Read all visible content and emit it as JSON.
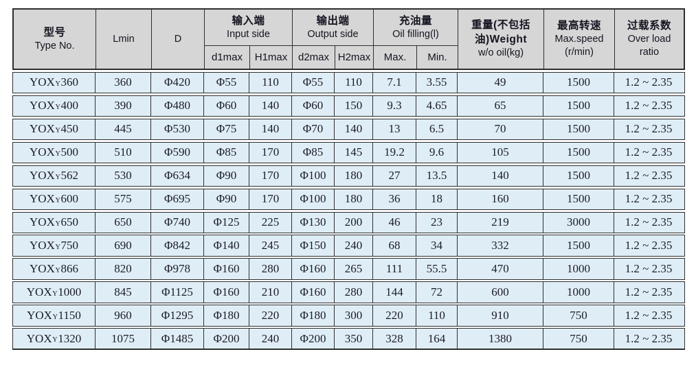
{
  "colors": {
    "header_bg": "#d6d6d6",
    "row_bg": "#dfeef6",
    "grid_line": "#2e2e2e"
  },
  "table": {
    "header": {
      "type_no": [
        "型号",
        "Type No."
      ],
      "lmin": "Lmin",
      "d": "D",
      "input_side": [
        "输入端",
        "Input side"
      ],
      "output_side": [
        "输出端",
        "Output side"
      ],
      "oil_filling": [
        "充油量",
        "Oil filling(l)"
      ],
      "weight": [
        "重量(不包括",
        "油)Weight",
        "w/o oil(kg)"
      ],
      "max_speed": [
        "最高转速",
        "Max.speed",
        "(r/min)"
      ],
      "overload": [
        "过载系数",
        "Over load",
        "ratio"
      ],
      "sub_labels": [
        "d1max",
        "H1max",
        "d2max",
        "H2max",
        "Max.",
        "Min."
      ]
    },
    "rows": [
      {
        "type": [
          "YOX",
          "Y",
          "360"
        ],
        "lmin": "360",
        "d": "Φ420",
        "d1max": "Φ55",
        "h1max": "110",
        "d2max": "Φ55",
        "h2max": "110",
        "oil_max": "7.1",
        "oil_min": "3.55",
        "weight": "49",
        "speed": "1500",
        "overload": "1.2 ~ 2.35"
      },
      {
        "type": [
          "YOX",
          "Y",
          "400"
        ],
        "lmin": "390",
        "d": "Φ480",
        "d1max": "Φ60",
        "h1max": "140",
        "d2max": "Φ60",
        "h2max": "150",
        "oil_max": "9.3",
        "oil_min": "4.65",
        "weight": "65",
        "speed": "1500",
        "overload": "1.2 ~ 2.35"
      },
      {
        "type": [
          "YOX",
          "Y",
          "450"
        ],
        "lmin": "445",
        "d": "Φ530",
        "d1max": "Φ75",
        "h1max": "140",
        "d2max": "Φ70",
        "h2max": "140",
        "oil_max": "13",
        "oil_min": "6.5",
        "weight": "70",
        "speed": "1500",
        "overload": "1.2 ~ 2.35"
      },
      {
        "type": [
          "YOX",
          "Y",
          "500"
        ],
        "lmin": "510",
        "d": "Φ590",
        "d1max": "Φ85",
        "h1max": "170",
        "d2max": "Φ85",
        "h2max": "145",
        "oil_max": "19.2",
        "oil_min": "9.6",
        "weight": "105",
        "speed": "1500",
        "overload": "1.2 ~ 2.35"
      },
      {
        "type": [
          "YOX",
          "Y",
          "562"
        ],
        "lmin": "530",
        "d": "Φ634",
        "d1max": "Φ90",
        "h1max": "170",
        "d2max": "Φ100",
        "h2max": "180",
        "oil_max": "27",
        "oil_min": "13.5",
        "weight": "140",
        "speed": "1500",
        "overload": "1.2 ~ 2.35"
      },
      {
        "type": [
          "YOX",
          "Y",
          "600"
        ],
        "lmin": "575",
        "d": "Φ695",
        "d1max": "Φ90",
        "h1max": "170",
        "d2max": "Φ100",
        "h2max": "180",
        "oil_max": "36",
        "oil_min": "18",
        "weight": "160",
        "speed": "1500",
        "overload": "1.2 ~ 2.35"
      },
      {
        "type": [
          "YOX",
          "Y",
          "650"
        ],
        "lmin": "650",
        "d": "Φ740",
        "d1max": "Φ125",
        "h1max": "225",
        "d2max": "Φ130",
        "h2max": "200",
        "oil_max": "46",
        "oil_min": "23",
        "weight": "219",
        "speed": "3000",
        "overload": "1.2 ~ 2.35"
      },
      {
        "type": [
          "YOX",
          "Y",
          "750"
        ],
        "lmin": "690",
        "d": "Φ842",
        "d1max": "Φ140",
        "h1max": "245",
        "d2max": "Φ150",
        "h2max": "240",
        "oil_max": "68",
        "oil_min": "34",
        "weight": "332",
        "speed": "1500",
        "overload": "1.2 ~ 2.35"
      },
      {
        "type": [
          "YOX",
          "Y",
          "866"
        ],
        "lmin": "820",
        "d": "Φ978",
        "d1max": "Φ160",
        "h1max": "280",
        "d2max": "Φ160",
        "h2max": "265",
        "oil_max": "111",
        "oil_min": "55.5",
        "weight": "470",
        "speed": "1000",
        "overload": "1.2 ~ 2.35"
      },
      {
        "type": [
          "YOX",
          "Y",
          "1000"
        ],
        "lmin": "845",
        "d": "Φ1125",
        "d1max": "Φ160",
        "h1max": "210",
        "d2max": "Φ160",
        "h2max": "280",
        "oil_max": "144",
        "oil_min": "72",
        "weight": "600",
        "speed": "1000",
        "overload": "1.2 ~ 2.35"
      },
      {
        "type": [
          "YOX",
          "Y",
          "1150"
        ],
        "lmin": "960",
        "d": "Φ1295",
        "d1max": "Φ180",
        "h1max": "220",
        "d2max": "Φ180",
        "h2max": "300",
        "oil_max": "220",
        "oil_min": "110",
        "weight": "910",
        "speed": "750",
        "overload": "1.2 ~ 2.35"
      },
      {
        "type": [
          "YOX",
          "Y",
          "1320"
        ],
        "lmin": "1075",
        "d": "Φ1485",
        "d1max": "Φ200",
        "h1max": "240",
        "d2max": "Φ200",
        "h2max": "350",
        "oil_max": "328",
        "oil_min": "164",
        "weight": "1380",
        "speed": "750",
        "overload": "1.2 ~ 2.35"
      }
    ]
  }
}
